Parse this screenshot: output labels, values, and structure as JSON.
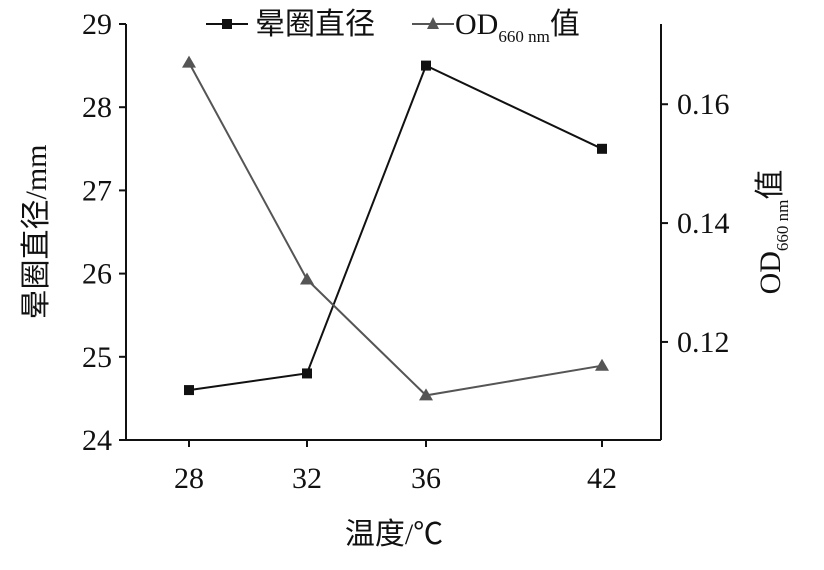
{
  "chart_data": {
    "type": "line",
    "x": [
      28,
      32,
      36,
      42
    ],
    "xlabel": "温度/℃",
    "ylabel_left": "晕圈直径/mm",
    "ylabel_right": {
      "base": "OD",
      "sub": "660 nm",
      "suffix": "值"
    },
    "ylim_left": [
      24,
      29
    ],
    "yticks_left": [
      24,
      25,
      26,
      27,
      28,
      29
    ],
    "ylim_right": [
      0.1035,
      0.1735
    ],
    "yticks_right": [
      0.12,
      0.14,
      0.16
    ],
    "grid": false,
    "legend_position": "top-center",
    "series": [
      {
        "name": "晕圈直径",
        "axis": "left",
        "marker": "square",
        "color": "#111111",
        "values": [
          24.6,
          24.8,
          28.5,
          27.5
        ]
      },
      {
        "name_base": "OD",
        "name_sub": "660 nm",
        "name_suffix": "值",
        "axis": "right",
        "marker": "triangle",
        "color": "#555555",
        "values": [
          0.167,
          0.1305,
          0.111,
          0.116
        ]
      }
    ]
  }
}
